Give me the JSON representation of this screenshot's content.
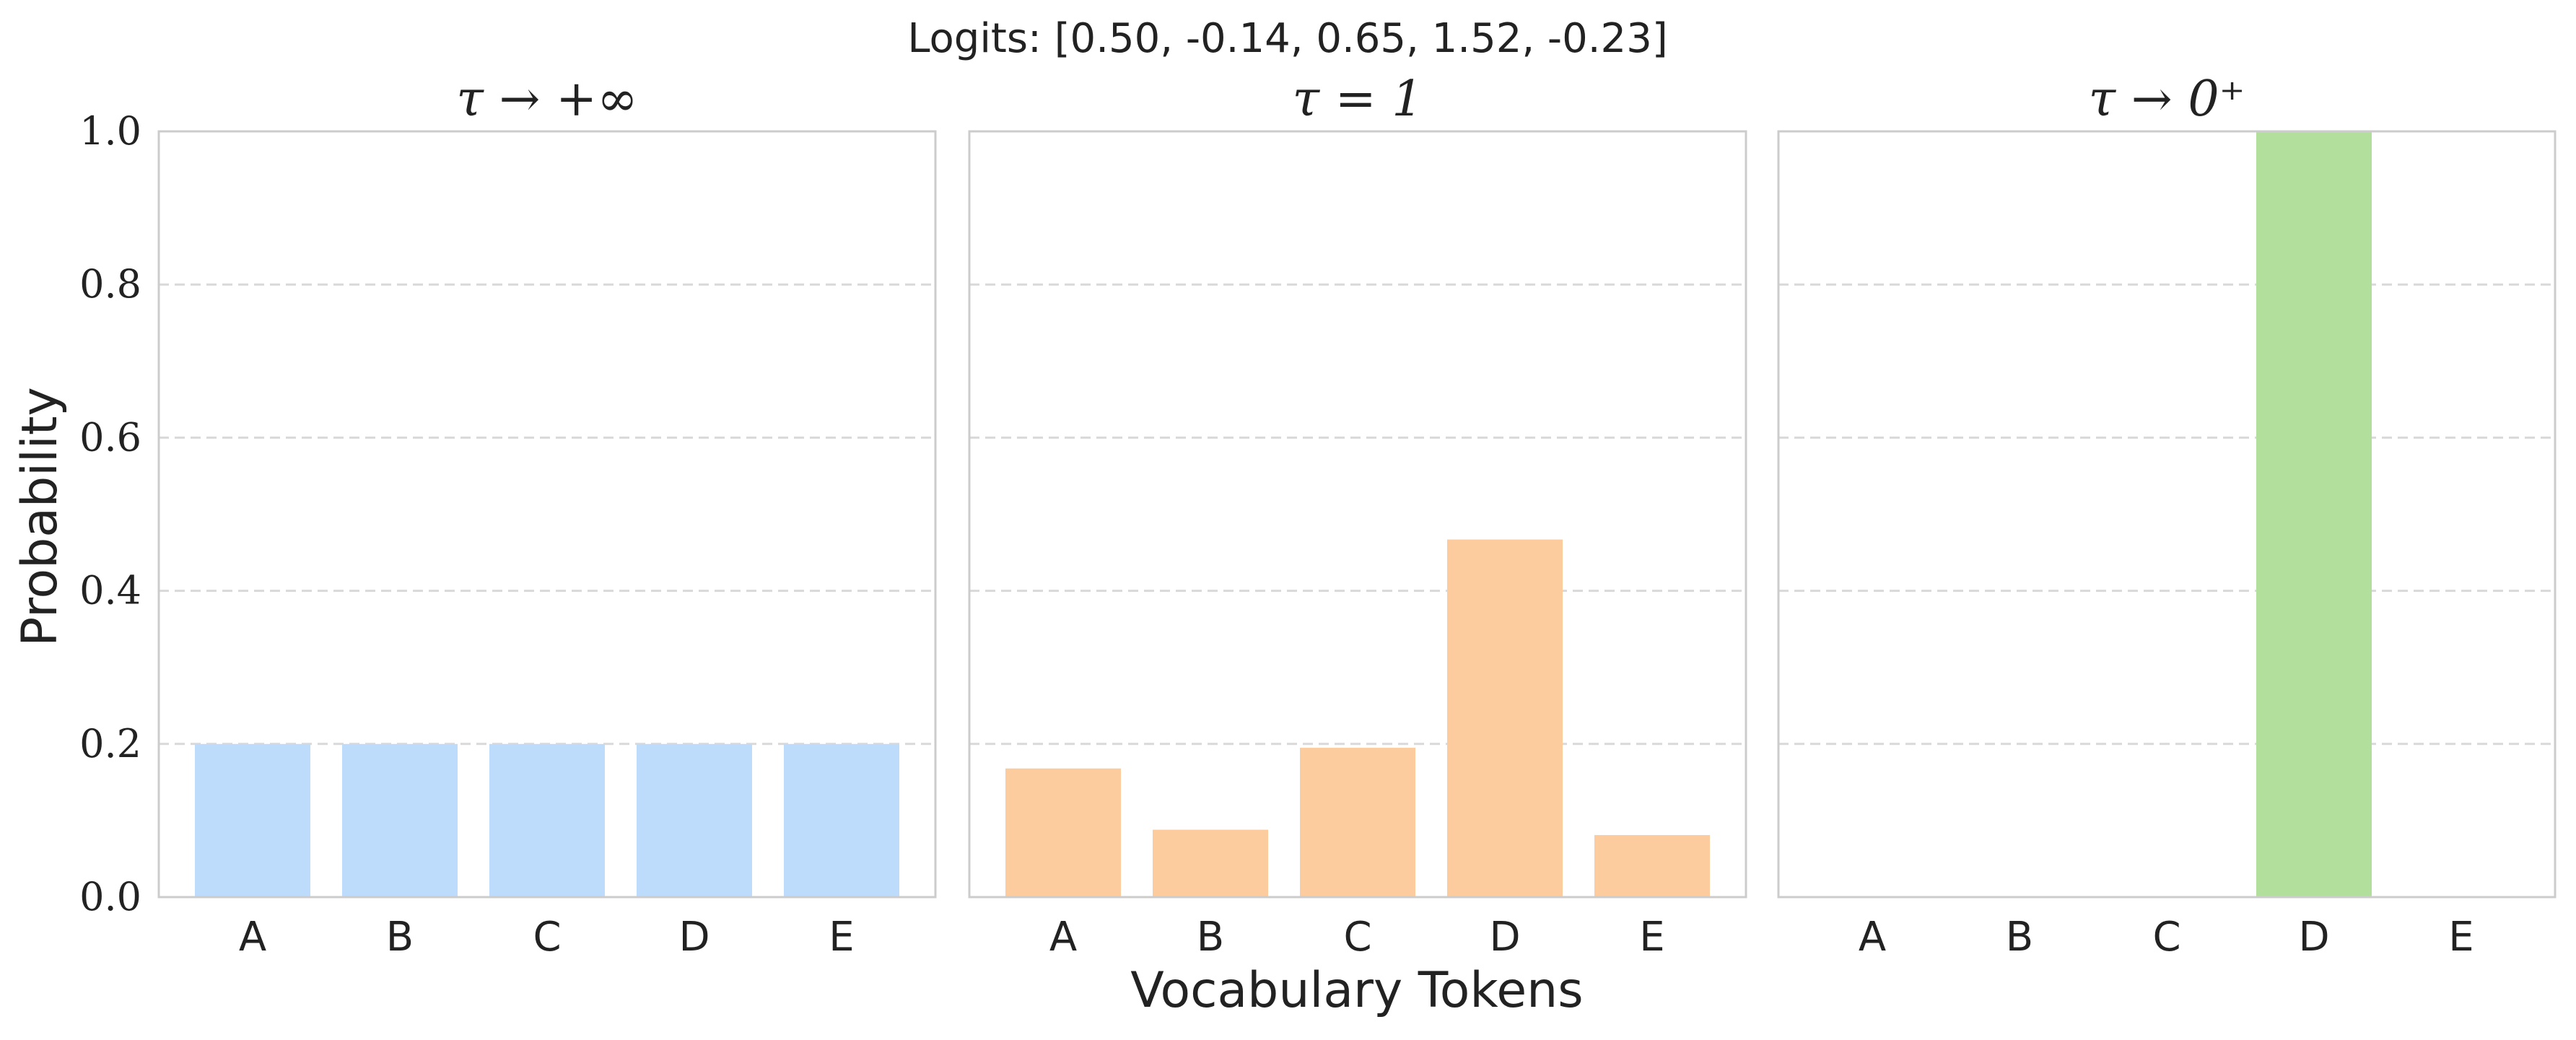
{
  "figure": {
    "suptitle": "Logits: [0.50, -0.14, 0.65, 1.52, -0.23]",
    "xlabel": "Vocabulary Tokens",
    "ylabel": "Probability"
  },
  "chart_data": [
    {
      "type": "bar",
      "title": "τ → +∞",
      "categories": [
        "A",
        "B",
        "C",
        "D",
        "E"
      ],
      "values": [
        0.2,
        0.2,
        0.2,
        0.2,
        0.2
      ],
      "color": "#bddcfb",
      "ylim": [
        0,
        1.0
      ],
      "yticks": [
        "0.0",
        "0.2",
        "0.4",
        "0.6",
        "0.8",
        "1.0"
      ],
      "grid": "y-dashed"
    },
    {
      "type": "bar",
      "title": "τ = 1",
      "categories": [
        "A",
        "B",
        "C",
        "D",
        "E"
      ],
      "values": [
        0.168,
        0.088,
        0.195,
        0.467,
        0.081
      ],
      "color": "#fccc9e",
      "ylim": [
        0,
        1.0
      ],
      "grid": "y-dashed"
    },
    {
      "type": "bar",
      "title": "τ → 0⁺",
      "categories": [
        "A",
        "B",
        "C",
        "D",
        "E"
      ],
      "values": [
        0,
        0,
        0,
        1.0,
        0
      ],
      "color": "#b3df9d",
      "ylim": [
        0,
        1.0
      ],
      "grid": "y-dashed"
    }
  ]
}
